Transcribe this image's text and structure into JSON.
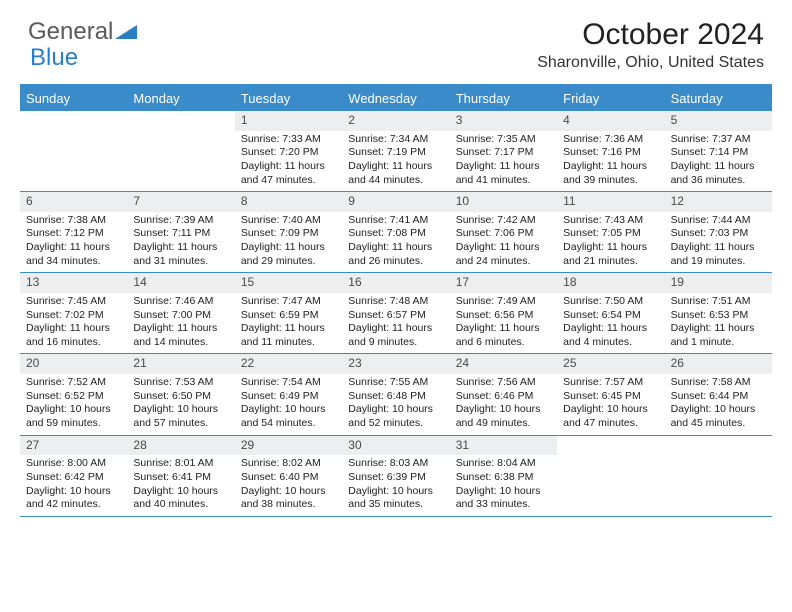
{
  "logo": {
    "general": "General",
    "blue": "Blue"
  },
  "title": "October 2024",
  "location": "Sharonville, Ohio, United States",
  "colors": {
    "header_bg": "#3a8bc9",
    "header_text": "#ffffff",
    "daynum_bg": "#eceeef",
    "border": "#3a8bc9",
    "logo_blue": "#2a7ec5"
  },
  "day_names": [
    "Sunday",
    "Monday",
    "Tuesday",
    "Wednesday",
    "Thursday",
    "Friday",
    "Saturday"
  ],
  "weeks": [
    [
      null,
      null,
      {
        "n": "1",
        "sr": "Sunrise: 7:33 AM",
        "ss": "Sunset: 7:20 PM",
        "dl": "Daylight: 11 hours and 47 minutes."
      },
      {
        "n": "2",
        "sr": "Sunrise: 7:34 AM",
        "ss": "Sunset: 7:19 PM",
        "dl": "Daylight: 11 hours and 44 minutes."
      },
      {
        "n": "3",
        "sr": "Sunrise: 7:35 AM",
        "ss": "Sunset: 7:17 PM",
        "dl": "Daylight: 11 hours and 41 minutes."
      },
      {
        "n": "4",
        "sr": "Sunrise: 7:36 AM",
        "ss": "Sunset: 7:16 PM",
        "dl": "Daylight: 11 hours and 39 minutes."
      },
      {
        "n": "5",
        "sr": "Sunrise: 7:37 AM",
        "ss": "Sunset: 7:14 PM",
        "dl": "Daylight: 11 hours and 36 minutes."
      }
    ],
    [
      {
        "n": "6",
        "sr": "Sunrise: 7:38 AM",
        "ss": "Sunset: 7:12 PM",
        "dl": "Daylight: 11 hours and 34 minutes."
      },
      {
        "n": "7",
        "sr": "Sunrise: 7:39 AM",
        "ss": "Sunset: 7:11 PM",
        "dl": "Daylight: 11 hours and 31 minutes."
      },
      {
        "n": "8",
        "sr": "Sunrise: 7:40 AM",
        "ss": "Sunset: 7:09 PM",
        "dl": "Daylight: 11 hours and 29 minutes."
      },
      {
        "n": "9",
        "sr": "Sunrise: 7:41 AM",
        "ss": "Sunset: 7:08 PM",
        "dl": "Daylight: 11 hours and 26 minutes."
      },
      {
        "n": "10",
        "sr": "Sunrise: 7:42 AM",
        "ss": "Sunset: 7:06 PM",
        "dl": "Daylight: 11 hours and 24 minutes."
      },
      {
        "n": "11",
        "sr": "Sunrise: 7:43 AM",
        "ss": "Sunset: 7:05 PM",
        "dl": "Daylight: 11 hours and 21 minutes."
      },
      {
        "n": "12",
        "sr": "Sunrise: 7:44 AM",
        "ss": "Sunset: 7:03 PM",
        "dl": "Daylight: 11 hours and 19 minutes."
      }
    ],
    [
      {
        "n": "13",
        "sr": "Sunrise: 7:45 AM",
        "ss": "Sunset: 7:02 PM",
        "dl": "Daylight: 11 hours and 16 minutes."
      },
      {
        "n": "14",
        "sr": "Sunrise: 7:46 AM",
        "ss": "Sunset: 7:00 PM",
        "dl": "Daylight: 11 hours and 14 minutes."
      },
      {
        "n": "15",
        "sr": "Sunrise: 7:47 AM",
        "ss": "Sunset: 6:59 PM",
        "dl": "Daylight: 11 hours and 11 minutes."
      },
      {
        "n": "16",
        "sr": "Sunrise: 7:48 AM",
        "ss": "Sunset: 6:57 PM",
        "dl": "Daylight: 11 hours and 9 minutes."
      },
      {
        "n": "17",
        "sr": "Sunrise: 7:49 AM",
        "ss": "Sunset: 6:56 PM",
        "dl": "Daylight: 11 hours and 6 minutes."
      },
      {
        "n": "18",
        "sr": "Sunrise: 7:50 AM",
        "ss": "Sunset: 6:54 PM",
        "dl": "Daylight: 11 hours and 4 minutes."
      },
      {
        "n": "19",
        "sr": "Sunrise: 7:51 AM",
        "ss": "Sunset: 6:53 PM",
        "dl": "Daylight: 11 hours and 1 minute."
      }
    ],
    [
      {
        "n": "20",
        "sr": "Sunrise: 7:52 AM",
        "ss": "Sunset: 6:52 PM",
        "dl": "Daylight: 10 hours and 59 minutes."
      },
      {
        "n": "21",
        "sr": "Sunrise: 7:53 AM",
        "ss": "Sunset: 6:50 PM",
        "dl": "Daylight: 10 hours and 57 minutes."
      },
      {
        "n": "22",
        "sr": "Sunrise: 7:54 AM",
        "ss": "Sunset: 6:49 PM",
        "dl": "Daylight: 10 hours and 54 minutes."
      },
      {
        "n": "23",
        "sr": "Sunrise: 7:55 AM",
        "ss": "Sunset: 6:48 PM",
        "dl": "Daylight: 10 hours and 52 minutes."
      },
      {
        "n": "24",
        "sr": "Sunrise: 7:56 AM",
        "ss": "Sunset: 6:46 PM",
        "dl": "Daylight: 10 hours and 49 minutes."
      },
      {
        "n": "25",
        "sr": "Sunrise: 7:57 AM",
        "ss": "Sunset: 6:45 PM",
        "dl": "Daylight: 10 hours and 47 minutes."
      },
      {
        "n": "26",
        "sr": "Sunrise: 7:58 AM",
        "ss": "Sunset: 6:44 PM",
        "dl": "Daylight: 10 hours and 45 minutes."
      }
    ],
    [
      {
        "n": "27",
        "sr": "Sunrise: 8:00 AM",
        "ss": "Sunset: 6:42 PM",
        "dl": "Daylight: 10 hours and 42 minutes."
      },
      {
        "n": "28",
        "sr": "Sunrise: 8:01 AM",
        "ss": "Sunset: 6:41 PM",
        "dl": "Daylight: 10 hours and 40 minutes."
      },
      {
        "n": "29",
        "sr": "Sunrise: 8:02 AM",
        "ss": "Sunset: 6:40 PM",
        "dl": "Daylight: 10 hours and 38 minutes."
      },
      {
        "n": "30",
        "sr": "Sunrise: 8:03 AM",
        "ss": "Sunset: 6:39 PM",
        "dl": "Daylight: 10 hours and 35 minutes."
      },
      {
        "n": "31",
        "sr": "Sunrise: 8:04 AM",
        "ss": "Sunset: 6:38 PM",
        "dl": "Daylight: 10 hours and 33 minutes."
      },
      null,
      null
    ]
  ]
}
